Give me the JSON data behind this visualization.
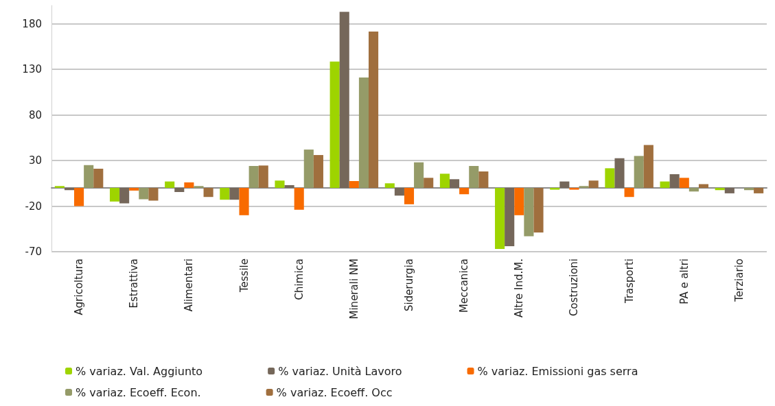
{
  "chart_data": {
    "type": "bar",
    "categories": [
      "Agricoltura",
      "Estrattiva",
      "Alimentari",
      "Tessile",
      "Chimica",
      "Minerali NM",
      "Siderurgia",
      "Meccanica",
      "Altre Ind.M.",
      "Costruzioni",
      "Trasporti",
      "PA e altri",
      "Terziario"
    ],
    "series": [
      {
        "name": "% variaz. Val. Aggiunto",
        "color": "#9ed400",
        "values": [
          2,
          -15,
          7,
          -13,
          8,
          138.5,
          5,
          15.5,
          -67,
          -2,
          21.5,
          7,
          -2.5
        ]
      },
      {
        "name": "% variaz. Unità Lavoro",
        "color": "#75675a",
        "values": [
          -2.5,
          -17,
          -4.5,
          -13,
          3,
          193,
          -8.5,
          9.5,
          -64,
          7,
          32.5,
          15,
          -6
        ]
      },
      {
        "name": "% variaz. Emissioni gas serra",
        "color": "#f86b00",
        "values": [
          -20,
          -3,
          6,
          -30,
          -24,
          7.5,
          -18,
          -7,
          -30,
          -2,
          -10,
          11,
          0
        ]
      },
      {
        "name": "% variaz. Ecoeff. Econ.",
        "color": "#959b68",
        "values": [
          25,
          -12.5,
          2,
          24,
          42,
          121,
          28,
          24,
          -53,
          2,
          35,
          -4,
          -2.5
        ]
      },
      {
        "name": "% variaz. Ecoeff. Occ",
        "color": "#a06f3e",
        "values": [
          21,
          -14,
          -10,
          24.5,
          36,
          171.5,
          11,
          18,
          -49,
          8,
          47,
          4,
          -6
        ]
      }
    ],
    "ylim": [
      -70,
      200
    ],
    "yticks": [
      -70,
      -20,
      30,
      80,
      130,
      180
    ],
    "grid": "y",
    "legend": "bottom"
  }
}
